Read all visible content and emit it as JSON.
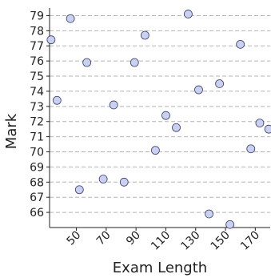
{
  "chart_data": {
    "type": "scatter",
    "title": "",
    "xlabel": "Exam Length",
    "ylabel": "Mark",
    "xlim": [
      32,
      180
    ],
    "ylim": [
      65,
      79.5
    ],
    "xticks": [
      50,
      70,
      90,
      110,
      130,
      150,
      170
    ],
    "yticks": [
      66,
      67,
      68,
      69,
      70,
      71,
      72,
      73,
      74,
      75,
      76,
      77,
      78,
      79
    ],
    "grid": "horizontal-dashed",
    "marker_fill": "#c9d1f1",
    "marker_stroke": "#3a3a6a",
    "grid_color": "#b5b5b5",
    "points": [
      {
        "x": 33,
        "y": 77.4
      },
      {
        "x": 37,
        "y": 73.4
      },
      {
        "x": 46,
        "y": 78.8
      },
      {
        "x": 52,
        "y": 67.5
      },
      {
        "x": 57,
        "y": 75.9
      },
      {
        "x": 68,
        "y": 68.2
      },
      {
        "x": 75,
        "y": 73.1
      },
      {
        "x": 82,
        "y": 68.0
      },
      {
        "x": 89,
        "y": 75.9
      },
      {
        "x": 96,
        "y": 77.7
      },
      {
        "x": 103,
        "y": 70.1
      },
      {
        "x": 110,
        "y": 72.4
      },
      {
        "x": 117,
        "y": 71.6
      },
      {
        "x": 125,
        "y": 79.1
      },
      {
        "x": 132,
        "y": 74.1
      },
      {
        "x": 139,
        "y": 65.9
      },
      {
        "x": 146,
        "y": 74.5
      },
      {
        "x": 153,
        "y": 65.2
      },
      {
        "x": 160,
        "y": 77.1
      },
      {
        "x": 167,
        "y": 70.2
      },
      {
        "x": 173,
        "y": 71.9
      },
      {
        "x": 179,
        "y": 71.5
      }
    ]
  }
}
